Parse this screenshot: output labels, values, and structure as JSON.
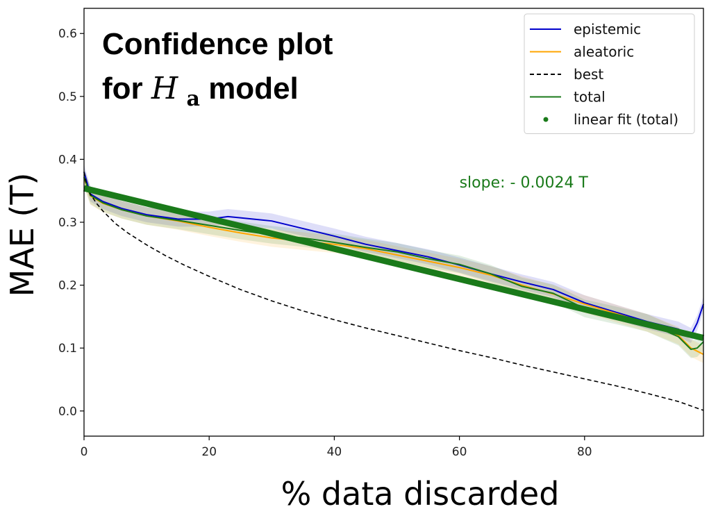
{
  "chart_data": {
    "type": "line",
    "title": {
      "line1": "Confidence plot",
      "line2_prefix": "for ",
      "line2_symbol": "H",
      "line2_subscript": "a",
      "line2_suffix": " model"
    },
    "xlabel": "% data discarded",
    "ylabel": "MAE (T)",
    "xlim": [
      0,
      99
    ],
    "ylim": [
      -0.04,
      0.64
    ],
    "xticks": [
      0,
      20,
      40,
      60,
      80
    ],
    "xtick_labels": [
      "0",
      "20",
      "40",
      "60",
      "80"
    ],
    "yticks": [
      0.0,
      0.1,
      0.2,
      0.3,
      0.4,
      0.5,
      0.6
    ],
    "ytick_labels": [
      "0.0",
      "0.1",
      "0.2",
      "0.3",
      "0.4",
      "0.5",
      "0.6"
    ],
    "grid": false,
    "legend_position": "top-right",
    "series": [
      {
        "name": "epistemic",
        "color": "#0000cc",
        "style": "solid",
        "x": [
          0,
          1,
          3,
          6,
          10,
          15,
          20,
          23,
          25,
          30,
          35,
          40,
          45,
          50,
          55,
          60,
          65,
          70,
          75,
          80,
          85,
          90,
          95,
          97,
          98,
          99
        ],
        "y": [
          0.38,
          0.345,
          0.333,
          0.322,
          0.312,
          0.305,
          0.305,
          0.309,
          0.307,
          0.302,
          0.29,
          0.278,
          0.265,
          0.255,
          0.245,
          0.232,
          0.218,
          0.205,
          0.193,
          0.172,
          0.157,
          0.142,
          0.13,
          0.12,
          0.14,
          0.17
        ],
        "band": 0.012
      },
      {
        "name": "aleatoric",
        "color": "#ffa500",
        "style": "solid",
        "x": [
          0,
          1,
          3,
          6,
          10,
          15,
          20,
          25,
          30,
          35,
          40,
          45,
          50,
          55,
          60,
          65,
          70,
          75,
          80,
          85,
          90,
          95,
          97,
          98,
          99
        ],
        "y": [
          0.37,
          0.342,
          0.33,
          0.32,
          0.31,
          0.302,
          0.292,
          0.283,
          0.275,
          0.27,
          0.265,
          0.258,
          0.248,
          0.238,
          0.228,
          0.216,
          0.2,
          0.186,
          0.17,
          0.155,
          0.14,
          0.12,
          0.1,
          0.095,
          0.09
        ],
        "band": 0.014
      },
      {
        "name": "best",
        "color": "#000000",
        "style": "dashed",
        "x": [
          0,
          0.5,
          1,
          2,
          3,
          5,
          7,
          10,
          13,
          16,
          20,
          25,
          30,
          35,
          40,
          45,
          50,
          55,
          60,
          65,
          70,
          75,
          80,
          85,
          90,
          95,
          99
        ],
        "y": [
          0.38,
          0.355,
          0.345,
          0.33,
          0.318,
          0.298,
          0.283,
          0.264,
          0.247,
          0.232,
          0.214,
          0.193,
          0.175,
          0.159,
          0.145,
          0.132,
          0.12,
          0.108,
          0.096,
          0.085,
          0.073,
          0.062,
          0.051,
          0.04,
          0.028,
          0.015,
          0.001
        ]
      },
      {
        "name": "total",
        "color": "#1a7a1a",
        "style": "solid",
        "x": [
          0,
          1,
          3,
          6,
          10,
          15,
          20,
          25,
          30,
          35,
          40,
          45,
          50,
          55,
          60,
          65,
          70,
          75,
          80,
          85,
          90,
          95,
          97,
          98,
          99
        ],
        "y": [
          0.372,
          0.343,
          0.331,
          0.32,
          0.31,
          0.303,
          0.295,
          0.287,
          0.28,
          0.275,
          0.268,
          0.26,
          0.253,
          0.242,
          0.233,
          0.218,
          0.198,
          0.187,
          0.163,
          0.152,
          0.14,
          0.118,
          0.098,
          0.1,
          0.11
        ],
        "band": 0.014
      },
      {
        "name": "linear fit (total)",
        "color": "#1a7a1a",
        "style": "fit",
        "x": [
          0,
          99
        ],
        "y": [
          0.354,
          0.116
        ]
      }
    ],
    "annotation": {
      "text": "slope: - 0.0024 T",
      "x": 60,
      "y": 0.355,
      "color": "#1a7a1a"
    }
  }
}
